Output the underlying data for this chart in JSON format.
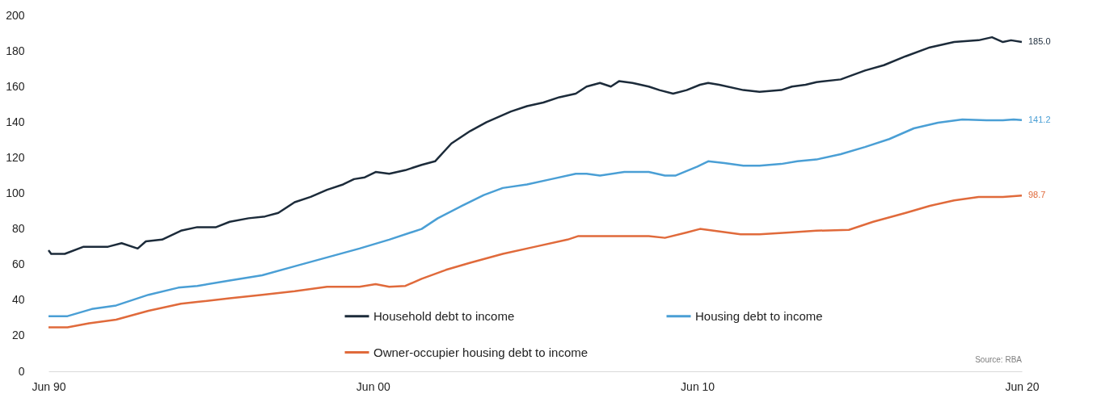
{
  "chart_data": {
    "type": "line",
    "xlim": [
      "1990-06",
      "2020-06"
    ],
    "xticks": [
      {
        "value": "1990-06",
        "label": "Jun 90"
      },
      {
        "value": "2000-06",
        "label": "Jun 00"
      },
      {
        "value": "2010-06",
        "label": "Jun 10"
      },
      {
        "value": "2020-06",
        "label": "Jun 20"
      }
    ],
    "ylim": [
      0,
      200
    ],
    "yticks": [
      0,
      20,
      40,
      60,
      80,
      100,
      120,
      140,
      160,
      180,
      200
    ],
    "legend": "bottom",
    "annotations": [
      "Source: RBA"
    ],
    "series": [
      {
        "name": "Household debt to income",
        "color": "#1c2b3a",
        "x": [
          "1990-06",
          "1990-07",
          "1990-12",
          "1991-07",
          "1992-04",
          "1992-09",
          "1993-03",
          "1993-06",
          "1993-12",
          "1994-07",
          "1995-01",
          "1995-08",
          "1996-01",
          "1996-08",
          "1997-02",
          "1997-07",
          "1998-01",
          "1998-07",
          "1999-01",
          "1999-07",
          "1999-11",
          "2000-03",
          "2000-07",
          "2000-12",
          "2001-06",
          "2001-12",
          "2002-05",
          "2002-11",
          "2003-06",
          "2003-12",
          "2004-09",
          "2005-03",
          "2005-09",
          "2006-03",
          "2006-09",
          "2007-01",
          "2007-06",
          "2007-10",
          "2008-01",
          "2008-06",
          "2008-12",
          "2009-04",
          "2009-09",
          "2010-02",
          "2010-07",
          "2010-10",
          "2011-02",
          "2011-11",
          "2012-05",
          "2013-01",
          "2013-05",
          "2013-10",
          "2014-02",
          "2014-11",
          "2015-08",
          "2016-03",
          "2016-11",
          "2017-08",
          "2018-05",
          "2019-02",
          "2019-07",
          "2019-11",
          "2020-02",
          "2020-06"
        ],
        "values": [
          68,
          66,
          66,
          70,
          70,
          72,
          69,
          73,
          74,
          79,
          81,
          81,
          84,
          86,
          87,
          89,
          95,
          98,
          102,
          105,
          108,
          109,
          112,
          111,
          113,
          116,
          118,
          128,
          135,
          140,
          146,
          149,
          151,
          154,
          156,
          160,
          162,
          160,
          163,
          162,
          160,
          158,
          156,
          158,
          161,
          162,
          161,
          158,
          157,
          158,
          160,
          161,
          162.5,
          164,
          169,
          172,
          177,
          182,
          185,
          186,
          187.7,
          185,
          186,
          185.0
        ],
        "value_labels": [
          null,
          null,
          null,
          null,
          null,
          null,
          null,
          null,
          null,
          null,
          null,
          null,
          null,
          null,
          null,
          null,
          null,
          null,
          null,
          null,
          null,
          null,
          null,
          null,
          null,
          null,
          null,
          null,
          null,
          null,
          null,
          null,
          null,
          null,
          null,
          null,
          null,
          null,
          null,
          null,
          null,
          null,
          null,
          null,
          null,
          null,
          null,
          null,
          null,
          null,
          null,
          null,
          null,
          null,
          null,
          null,
          null,
          null,
          null,
          null,
          null,
          null,
          null,
          "185.0"
        ]
      },
      {
        "name": "Housing debt to income",
        "color": "#4a9fd5",
        "x": [
          "1990-06",
          "1991-01",
          "1991-10",
          "1992-07",
          "1993-07",
          "1994-06",
          "1995-01",
          "1996-01",
          "1997-01",
          "1998-01",
          "1999-01",
          "2000-01",
          "2000-12",
          "2001-12",
          "2002-06",
          "2003-03",
          "2003-11",
          "2004-06",
          "2005-03",
          "2005-12",
          "2006-09",
          "2007-01",
          "2007-06",
          "2008-03",
          "2008-12",
          "2009-06",
          "2009-10",
          "2010-06",
          "2010-10",
          "2011-04",
          "2011-11",
          "2012-05",
          "2013-01",
          "2013-07",
          "2014-02",
          "2014-11",
          "2015-08",
          "2016-05",
          "2017-02",
          "2017-11",
          "2018-08",
          "2019-05",
          "2019-11",
          "2020-03",
          "2020-06"
        ],
        "values": [
          31,
          31,
          35,
          37,
          43,
          47,
          48,
          51,
          54,
          59,
          64,
          69,
          74,
          80,
          86,
          93,
          99,
          103,
          105,
          108,
          111,
          111,
          110,
          112,
          112,
          110,
          110,
          115,
          118,
          117,
          115.5,
          115.5,
          116.5,
          118,
          119,
          122,
          126,
          130.5,
          136.5,
          139.7,
          141.5,
          141,
          141,
          141.5,
          141.2
        ],
        "value_labels": [
          null,
          null,
          null,
          null,
          null,
          null,
          null,
          null,
          null,
          null,
          null,
          null,
          null,
          null,
          null,
          null,
          null,
          null,
          null,
          null,
          null,
          null,
          null,
          null,
          null,
          null,
          null,
          null,
          null,
          null,
          null,
          null,
          null,
          null,
          null,
          null,
          null,
          null,
          null,
          null,
          null,
          null,
          null,
          null,
          "141.2"
        ]
      },
      {
        "name": "Owner-occupier housing debt to income",
        "color": "#e06a3b",
        "x": [
          "1990-06",
          "1991-01",
          "1991-09",
          "1992-07",
          "1993-07",
          "1994-07",
          "1995-01",
          "1996-01",
          "1997-01",
          "1998-01",
          "1999-01",
          "2000-01",
          "2000-07",
          "2000-12",
          "2001-06",
          "2001-12",
          "2002-09",
          "2003-06",
          "2004-06",
          "2005-06",
          "2006-06",
          "2006-10",
          "2007-09",
          "2008-12",
          "2009-06",
          "2010-02",
          "2010-07",
          "2010-12",
          "2011-10",
          "2012-05",
          "2013-04",
          "2014-02",
          "2015-02",
          "2015-11",
          "2016-11",
          "2017-08",
          "2018-05",
          "2019-02",
          "2019-11",
          "2020-06"
        ],
        "values": [
          24.7,
          24.7,
          27,
          29,
          34,
          38,
          39,
          41,
          43,
          45,
          47.5,
          47.5,
          49,
          47.5,
          48,
          52,
          57,
          61,
          66,
          70,
          74,
          76,
          76,
          76,
          75,
          78,
          80,
          79,
          77,
          77,
          78,
          79,
          79.5,
          84,
          89,
          93,
          96,
          98,
          98,
          98.7
        ],
        "value_labels": [
          null,
          null,
          null,
          null,
          null,
          null,
          null,
          null,
          null,
          null,
          null,
          null,
          null,
          null,
          null,
          null,
          null,
          null,
          null,
          null,
          null,
          null,
          null,
          null,
          null,
          null,
          null,
          null,
          null,
          null,
          null,
          null,
          null,
          null,
          null,
          null,
          null,
          null,
          null,
          "98.7"
        ]
      }
    ]
  }
}
